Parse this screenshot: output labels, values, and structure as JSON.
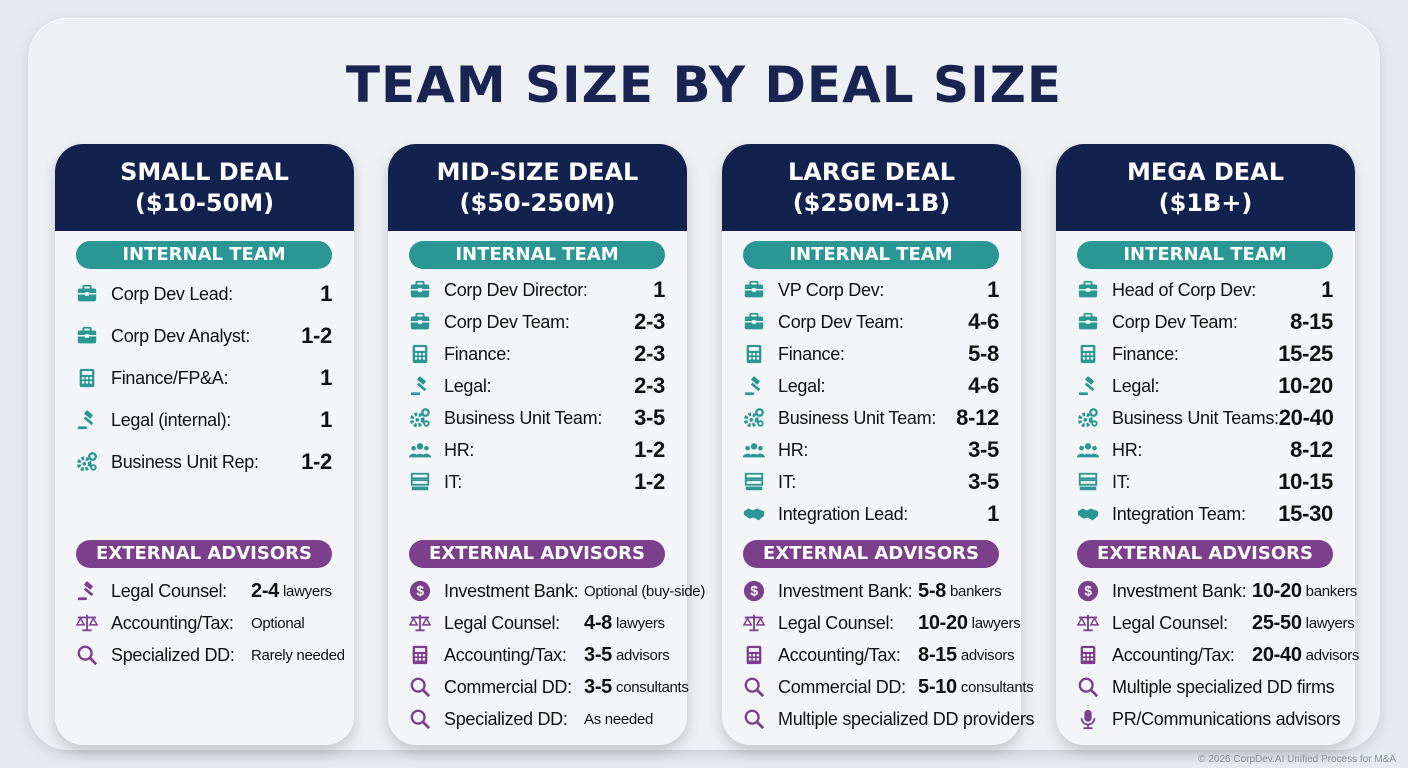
{
  "title": "TEAM SIZE BY DEAL SIZE",
  "colors": {
    "navy": "#13214e",
    "teal": "#2a9794",
    "purple": "#7b3f8c"
  },
  "internal_label": "INTERNAL TEAM",
  "external_label": "EXTERNAL ADVISORS",
  "cards": [
    {
      "title": "SMALL DEAL",
      "range": "($10-50M)",
      "internal": [
        {
          "icon": "briefcase-icon",
          "label": "Corp Dev Lead:",
          "value": "1"
        },
        {
          "icon": "briefcase-icon",
          "label": "Corp Dev Analyst:",
          "value": "1-2"
        },
        {
          "icon": "calculator-icon",
          "label": "Finance/FP&A:",
          "value": "1"
        },
        {
          "icon": "gavel-icon",
          "label": "Legal (internal):",
          "value": "1"
        },
        {
          "icon": "gears-icon",
          "label": "Business Unit Rep:",
          "value": "1-2"
        }
      ],
      "external": [
        {
          "icon": "gavel-icon",
          "label": "Legal Counsel:",
          "value": "2-4",
          "unit": "lawyers"
        },
        {
          "icon": "scales-icon",
          "label": "Accounting/Tax:",
          "note": "Optional"
        },
        {
          "icon": "magnifier-icon",
          "label": "Specialized DD:",
          "note": "Rarely needed"
        }
      ]
    },
    {
      "title": "MID-SIZE DEAL",
      "range": "($50-250M)",
      "internal": [
        {
          "icon": "briefcase-icon",
          "label": "Corp Dev Director:",
          "value": "1"
        },
        {
          "icon": "briefcase-icon",
          "label": "Corp Dev Team:",
          "value": "2-3"
        },
        {
          "icon": "calculator-icon",
          "label": "Finance:",
          "value": "2-3"
        },
        {
          "icon": "gavel-icon",
          "label": "Legal:",
          "value": "2-3"
        },
        {
          "icon": "gears-icon",
          "label": "Business Unit Team:",
          "value": "3-5"
        },
        {
          "icon": "people-icon",
          "label": "HR:",
          "value": "1-2"
        },
        {
          "icon": "server-icon",
          "label": "IT:",
          "value": "1-2"
        }
      ],
      "external": [
        {
          "icon": "dollar-icon",
          "label": "Investment Bank:",
          "note": "Optional (buy-side)"
        },
        {
          "icon": "scales-icon",
          "label": "Legal Counsel:",
          "value": "4-8",
          "unit": "lawyers"
        },
        {
          "icon": "calculator-icon",
          "label": "Accounting/Tax:",
          "value": "3-5",
          "unit": "advisors"
        },
        {
          "icon": "magnifier-icon",
          "label": "Commercial DD:",
          "value": "3-5",
          "unit": "consultants"
        },
        {
          "icon": "magnifier-icon",
          "label": "Specialized DD:",
          "note": "As needed"
        }
      ]
    },
    {
      "title": "LARGE DEAL",
      "range": "($250M-1B)",
      "internal": [
        {
          "icon": "briefcase-icon",
          "label": "VP Corp Dev:",
          "value": "1"
        },
        {
          "icon": "briefcase-icon",
          "label": "Corp Dev Team:",
          "value": "4-6"
        },
        {
          "icon": "calculator-icon",
          "label": "Finance:",
          "value": "5-8"
        },
        {
          "icon": "gavel-icon",
          "label": "Legal:",
          "value": "4-6"
        },
        {
          "icon": "gears-icon",
          "label": "Business Unit Team:",
          "value": "8-12"
        },
        {
          "icon": "people-icon",
          "label": "HR:",
          "value": "3-5"
        },
        {
          "icon": "server-icon",
          "label": "IT:",
          "value": "3-5"
        },
        {
          "icon": "handshake-icon",
          "label": "Integration Lead:",
          "value": "1"
        }
      ],
      "external": [
        {
          "icon": "dollar-icon",
          "label": "Investment Bank:",
          "value": "5-8",
          "unit": "bankers"
        },
        {
          "icon": "scales-icon",
          "label": "Legal Counsel:",
          "value": "10-20",
          "unit": "lawyers"
        },
        {
          "icon": "calculator-icon",
          "label": "Accounting/Tax:",
          "value": "8-15",
          "unit": "advisors"
        },
        {
          "icon": "magnifier-icon",
          "label": "Commercial DD:",
          "value": "5-10",
          "unit": "consultants"
        },
        {
          "icon": "magnifier-icon",
          "label": "Multiple specialized DD providers"
        }
      ]
    },
    {
      "title": "MEGA DEAL",
      "range": "($1B+)",
      "internal": [
        {
          "icon": "briefcase-icon",
          "label": "Head of Corp Dev:",
          "value": "1"
        },
        {
          "icon": "briefcase-icon",
          "label": "Corp Dev Team:",
          "value": "8-15"
        },
        {
          "icon": "calculator-icon",
          "label": "Finance:",
          "value": "15-25"
        },
        {
          "icon": "gavel-icon",
          "label": "Legal:",
          "value": "10-20"
        },
        {
          "icon": "gears-icon",
          "label": "Business Unit Teams:",
          "value": "20-40"
        },
        {
          "icon": "people-icon",
          "label": "HR:",
          "value": "8-12"
        },
        {
          "icon": "server-icon",
          "label": "IT:",
          "value": "10-15"
        },
        {
          "icon": "handshake-icon",
          "label": "Integration Team:",
          "value": "15-30"
        }
      ],
      "external": [
        {
          "icon": "dollar-icon",
          "label": "Investment Bank:",
          "value": "10-20",
          "unit": "bankers"
        },
        {
          "icon": "scales-icon",
          "label": "Legal Counsel:",
          "value": "25-50",
          "unit": "lawyers"
        },
        {
          "icon": "calculator-icon",
          "label": "Accounting/Tax:",
          "value": "20-40",
          "unit": "advisors"
        },
        {
          "icon": "magnifier-icon",
          "label": "Multiple specialized DD firms"
        },
        {
          "icon": "microphone-icon",
          "label": "PR/Communications advisors"
        }
      ]
    }
  ],
  "footer": "© 2026 CorpDev.AI Unified Process for M&A"
}
